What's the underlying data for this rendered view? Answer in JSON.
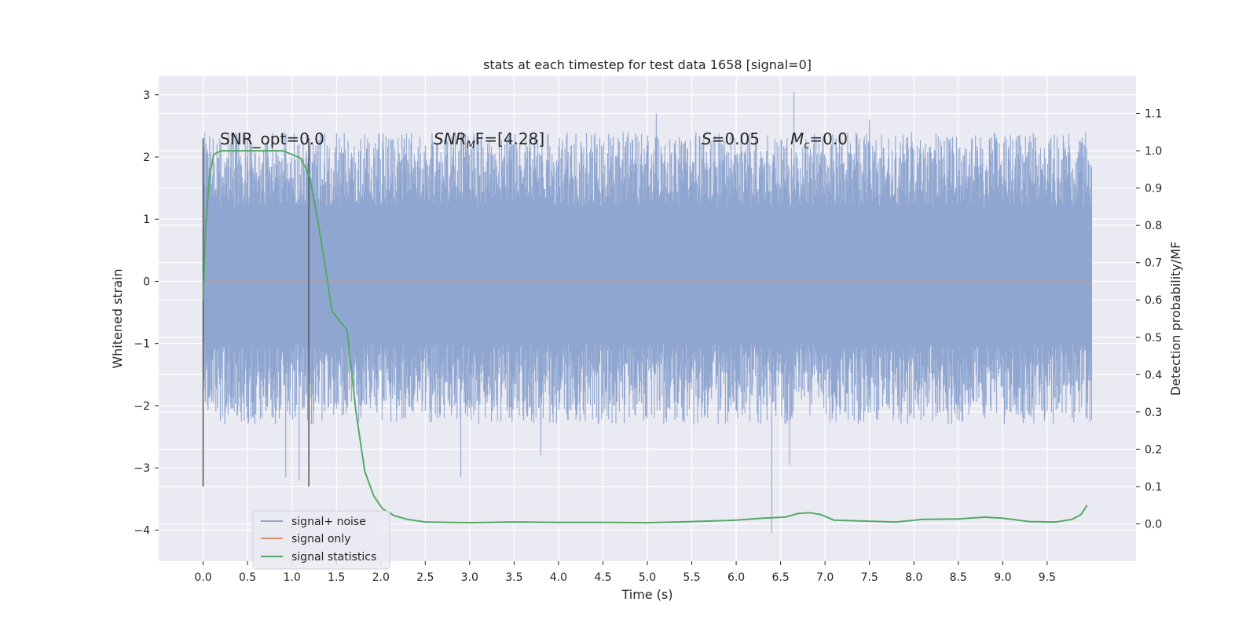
{
  "chart_data": {
    "type": "line",
    "title": "stats at each timestep for test data 1658 [signal=0]",
    "xlabel": "Time (s)",
    "ylabel": "Whitened strain",
    "y2label": "Detection probability/MF",
    "xlim": [
      -0.5,
      10.5
    ],
    "ylim": [
      -4.5,
      3.3
    ],
    "y2lim": [
      -0.1,
      1.2
    ],
    "x_ticks": [
      0.0,
      0.5,
      1.0,
      1.5,
      2.0,
      2.5,
      3.0,
      3.5,
      4.0,
      4.5,
      5.0,
      5.5,
      6.0,
      6.5,
      7.0,
      7.5,
      8.0,
      8.5,
      9.0,
      9.5
    ],
    "x_tick_labels": [
      "0.0",
      "0.5",
      "1.0",
      "1.5",
      "2.0",
      "2.5",
      "3.0",
      "3.5",
      "4.0",
      "4.5",
      "5.0",
      "5.5",
      "6.0",
      "6.5",
      "7.0",
      "7.5",
      "8.0",
      "8.5",
      "9.0",
      "9.5"
    ],
    "y_ticks": [
      -4,
      -3,
      -2,
      -1,
      0,
      1,
      2,
      3
    ],
    "y_tick_labels": [
      "−4",
      "−3",
      "−2",
      "−1",
      "0",
      "1",
      "2",
      "3"
    ],
    "y2_ticks": [
      0.0,
      0.1,
      0.2,
      0.3,
      0.4,
      0.5,
      0.6,
      0.7,
      0.8,
      0.9,
      1.0,
      1.1
    ],
    "y2_tick_labels": [
      "0.0",
      "0.1",
      "0.2",
      "0.3",
      "0.4",
      "0.5",
      "0.6",
      "0.7",
      "0.8",
      "0.9",
      "1.0",
      "1.1"
    ],
    "grid": true,
    "legend_position": "lower-left",
    "annotations": {
      "snr_opt": "SNR_opt=0.0",
      "snr_mf_sym": "SNR",
      "snr_mf_sub": "M",
      "snr_mf_rest": "F=[4.28]",
      "s_sym": "S",
      "s_rest": "=0.05",
      "mc_sym": "M",
      "mc_sub": "c",
      "mc_rest": "=0.0"
    },
    "vertical_markers": [
      0.0,
      1.19
    ],
    "vertical_marker_range": [
      -3.3,
      2.3
    ],
    "noise": {
      "name": "signal+ noise",
      "color": "#8fa6d0",
      "t_range": [
        0.0,
        10.0
      ],
      "typical_max": [
        1.2,
        2.4
      ],
      "typical_min": [
        -1.0,
        -2.3
      ],
      "spikes": [
        {
          "t": 0.93,
          "v": -3.15
        },
        {
          "t": 1.08,
          "v": -3.2
        },
        {
          "t": 2.9,
          "v": -3.15
        },
        {
          "t": 3.8,
          "v": -2.8
        },
        {
          "t": 5.1,
          "v": 2.7
        },
        {
          "t": 6.4,
          "v": -4.05
        },
        {
          "t": 6.65,
          "v": 3.05
        },
        {
          "t": 6.6,
          "v": -2.95
        },
        {
          "t": 7.5,
          "v": 2.6
        }
      ]
    },
    "signal": {
      "name": "signal only",
      "color": "#e08e6a",
      "value": 0.0
    },
    "stats": {
      "name": "signal statistics",
      "color": "#55a868",
      "points": [
        [
          0.0,
          0.6
        ],
        [
          0.03,
          0.8
        ],
        [
          0.07,
          0.93
        ],
        [
          0.12,
          0.99
        ],
        [
          0.2,
          1.0
        ],
        [
          0.5,
          1.0
        ],
        [
          0.9,
          1.0
        ],
        [
          1.1,
          0.98
        ],
        [
          1.2,
          0.93
        ],
        [
          1.3,
          0.8
        ],
        [
          1.4,
          0.65
        ],
        [
          1.45,
          0.57
        ],
        [
          1.55,
          0.54
        ],
        [
          1.62,
          0.52
        ],
        [
          1.72,
          0.3
        ],
        [
          1.82,
          0.14
        ],
        [
          1.92,
          0.075
        ],
        [
          2.02,
          0.04
        ],
        [
          2.15,
          0.022
        ],
        [
          2.3,
          0.012
        ],
        [
          2.5,
          0.005
        ],
        [
          3.0,
          0.003
        ],
        [
          3.5,
          0.005
        ],
        [
          4.0,
          0.004
        ],
        [
          4.5,
          0.004
        ],
        [
          5.0,
          0.003
        ],
        [
          5.5,
          0.006
        ],
        [
          6.0,
          0.01
        ],
        [
          6.3,
          0.015
        ],
        [
          6.55,
          0.018
        ],
        [
          6.7,
          0.028
        ],
        [
          6.82,
          0.03
        ],
        [
          6.95,
          0.025
        ],
        [
          7.1,
          0.01
        ],
        [
          7.5,
          0.007
        ],
        [
          7.8,
          0.005
        ],
        [
          8.1,
          0.012
        ],
        [
          8.5,
          0.013
        ],
        [
          8.8,
          0.018
        ],
        [
          9.0,
          0.015
        ],
        [
          9.3,
          0.006
        ],
        [
          9.6,
          0.005
        ],
        [
          9.78,
          0.012
        ],
        [
          9.88,
          0.025
        ],
        [
          9.95,
          0.05
        ]
      ]
    }
  }
}
